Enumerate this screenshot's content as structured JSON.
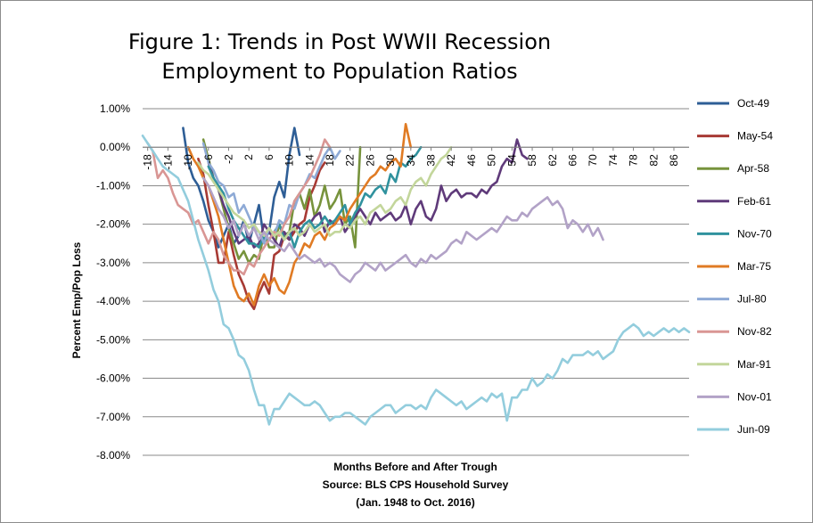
{
  "chart_data": {
    "type": "line",
    "title_lines": [
      "Figure 1: Trends in Post WWII Recession",
      "Employment to Population Ratios"
    ],
    "ylabel": "Percent Emp/Pop Loss",
    "xlabel_lines": [
      "Months Before and After Trough",
      "Source: BLS CPS Household Survey",
      "(Jan. 1948 to Oct. 2016)"
    ],
    "ylim": [
      -8,
      1
    ],
    "yticks": [
      1,
      0,
      -1,
      -2,
      -3,
      -4,
      -5,
      -6,
      -7,
      -8
    ],
    "ytick_labels": [
      "1.00%",
      "0.00%",
      "-1.00%",
      "-2.00%",
      "-3.00%",
      "-4.00%",
      "-5.00%",
      "-6.00%",
      "-7.00%",
      "-8.00%"
    ],
    "xlim": [
      -19,
      89
    ],
    "xticks": [
      -18,
      -14,
      -10,
      -6,
      -2,
      2,
      6,
      10,
      14,
      18,
      22,
      26,
      30,
      34,
      38,
      42,
      46,
      50,
      54,
      58,
      62,
      66,
      70,
      74,
      78,
      82,
      86
    ],
    "grid": "horizontal",
    "legend_position": "right",
    "series": [
      {
        "name": "Oct-49",
        "color": "#2e5e96",
        "x": [
          -11,
          -10,
          -9,
          -8,
          -7,
          -6,
          -5,
          -4,
          -3,
          -2,
          -1,
          0,
          1,
          2,
          3,
          4,
          5,
          6,
          7,
          8,
          9,
          10,
          11,
          12
        ],
        "y": [
          0.5,
          -0.4,
          -0.8,
          -1.0,
          -1.4,
          -1.9,
          -2.2,
          -2.6,
          -2.3,
          -2.0,
          -2.5,
          -2.3,
          -1.9,
          -2.5,
          -2.0,
          -1.5,
          -2.4,
          -2.2,
          -1.3,
          -0.9,
          -1.3,
          -0.2,
          0.5,
          -0.2
        ]
      },
      {
        "name": "May-54",
        "color": "#a73a34",
        "x": [
          -8,
          -7,
          -6,
          -5,
          -4,
          -3,
          -2,
          -1,
          0,
          1,
          2,
          3,
          4,
          5,
          6,
          7,
          8,
          9,
          10,
          11,
          12,
          13,
          14,
          15,
          16,
          17
        ],
        "y": [
          -0.3,
          -0.7,
          -1.5,
          -2.2,
          -3.0,
          -3.0,
          -2.2,
          -2.8,
          -3.3,
          -3.6,
          -4.0,
          -4.2,
          -3.8,
          -3.5,
          -3.8,
          -2.8,
          -2.7,
          -2.3,
          -2.4,
          -2.2,
          -2.0,
          -1.9,
          -1.3,
          -1.0,
          -0.6,
          -0.4
        ]
      },
      {
        "name": "Apr-58",
        "color": "#77933c",
        "x": [
          -7,
          -6,
          -5,
          -4,
          -3,
          -2,
          -1,
          0,
          1,
          2,
          3,
          4,
          5,
          6,
          7,
          8,
          9,
          10,
          11,
          12,
          13,
          14,
          15,
          16,
          17,
          18,
          19,
          20,
          21,
          22,
          23,
          24
        ],
        "y": [
          0.2,
          -0.3,
          -0.8,
          -1.1,
          -1.6,
          -2.1,
          -2.5,
          -2.9,
          -2.7,
          -3.0,
          -2.8,
          -2.9,
          -2.2,
          -2.6,
          -2.6,
          -2.0,
          -2.3,
          -2.2,
          -1.4,
          -1.2,
          -1.6,
          -1.1,
          -1.8,
          -1.5,
          -1.0,
          -1.6,
          -1.4,
          -1.1,
          -2.0,
          -1.8,
          -2.6,
          0.0
        ]
      },
      {
        "name": "Feb-61",
        "color": "#5f3a7a",
        "x": [
          -6,
          -5,
          -4,
          -3,
          -2,
          -1,
          0,
          1,
          2,
          3,
          4,
          5,
          6,
          7,
          8,
          9,
          10,
          11,
          12,
          13,
          14,
          15,
          16,
          17,
          18,
          19,
          20,
          21,
          22,
          23,
          24,
          25,
          26,
          27,
          28,
          29,
          30,
          31,
          32,
          33,
          34,
          35,
          36,
          37,
          38,
          39,
          40,
          41,
          42,
          43,
          44,
          45,
          46,
          47,
          48,
          49,
          50,
          51,
          52,
          53,
          54,
          55,
          56,
          57
        ],
        "y": [
          -0.4,
          -0.8,
          -1.1,
          -1.5,
          -1.8,
          -2.2,
          -2.5,
          -2.4,
          -2.3,
          -2.6,
          -2.5,
          -2.0,
          -2.2,
          -2.4,
          -2.6,
          -2.2,
          -2.4,
          -2.0,
          -2.1,
          -2.3,
          -2.0,
          -1.8,
          -1.7,
          -2.2,
          -1.9,
          -2.0,
          -1.8,
          -2.2,
          -2.0,
          -1.8,
          -1.6,
          -1.8,
          -2.0,
          -1.7,
          -1.9,
          -1.8,
          -1.7,
          -1.9,
          -1.8,
          -1.5,
          -2.0,
          -1.6,
          -1.4,
          -1.8,
          -1.9,
          -1.6,
          -1.0,
          -1.4,
          -1.2,
          -1.1,
          -1.3,
          -1.2,
          -1.2,
          -1.3,
          -1.1,
          -1.2,
          -1.0,
          -0.9,
          -0.5,
          -0.3,
          -0.4,
          0.2,
          -0.2,
          -0.3
        ]
      },
      {
        "name": "Nov-70",
        "color": "#30929e",
        "x": [
          -6,
          -5,
          -4,
          -3,
          -2,
          -1,
          0,
          1,
          2,
          3,
          4,
          5,
          6,
          7,
          8,
          9,
          10,
          11,
          12,
          13,
          14,
          15,
          16,
          17,
          18,
          19,
          20,
          21,
          22,
          23,
          24,
          25,
          26,
          27,
          28,
          29,
          30,
          31,
          32,
          33,
          34,
          35,
          36
        ],
        "y": [
          -0.5,
          -0.8,
          -1.0,
          -1.2,
          -1.6,
          -1.9,
          -2.1,
          -2.3,
          -2.5,
          -2.5,
          -2.6,
          -2.3,
          -2.4,
          -2.2,
          -2.0,
          -2.4,
          -2.2,
          -2.6,
          -2.2,
          -2.0,
          -1.9,
          -2.1,
          -2.0,
          -1.8,
          -2.0,
          -1.9,
          -1.7,
          -1.5,
          -2.0,
          -1.7,
          -1.5,
          -1.2,
          -1.3,
          -1.1,
          -1.0,
          -1.2,
          -0.7,
          -0.9,
          -0.4,
          -0.5,
          -0.3,
          -0.2,
          0.0
        ]
      },
      {
        "name": "Mar-75",
        "color": "#e07b24",
        "x": [
          -10,
          -9,
          -8,
          -7,
          -6,
          -5,
          -4,
          -3,
          -2,
          -1,
          0,
          1,
          2,
          3,
          4,
          5,
          6,
          7,
          8,
          9,
          10,
          11,
          12,
          13,
          14,
          15,
          16,
          17,
          18,
          19,
          20,
          21,
          22,
          23,
          24,
          25,
          26,
          27,
          28,
          29,
          30,
          31,
          32,
          33,
          34
        ],
        "y": [
          0.0,
          -0.3,
          -0.5,
          -0.8,
          -1.0,
          -1.4,
          -1.8,
          -2.4,
          -3.0,
          -3.6,
          -3.9,
          -4.0,
          -3.8,
          -4.1,
          -3.6,
          -3.3,
          -3.6,
          -3.4,
          -3.7,
          -3.8,
          -3.5,
          -3.0,
          -2.8,
          -2.5,
          -2.6,
          -2.3,
          -2.2,
          -2.4,
          -2.1,
          -2.0,
          -1.8,
          -1.9,
          -1.6,
          -1.4,
          -1.2,
          -1.0,
          -0.8,
          -0.7,
          -0.5,
          -0.6,
          -0.4,
          -0.3,
          -0.5,
          0.6,
          0.0
        ]
      },
      {
        "name": "Jul-80",
        "color": "#8eaad6",
        "x": [
          -7,
          -6,
          -5,
          -4,
          -3,
          -2,
          -1,
          0,
          1,
          2,
          3,
          4,
          5,
          6,
          7,
          8,
          9,
          10,
          11,
          12,
          13,
          14,
          15,
          16,
          17,
          18,
          19,
          20
        ],
        "y": [
          0.1,
          -0.4,
          -0.6,
          -0.9,
          -1.0,
          -1.3,
          -1.2,
          -1.7,
          -1.5,
          -1.8,
          -2.1,
          -2.2,
          -2.5,
          -2.1,
          -2.3,
          -1.9,
          -2.0,
          -1.5,
          -1.6,
          -1.2,
          -1.0,
          -0.7,
          -0.8,
          -0.5,
          -0.2,
          0.0,
          -0.3,
          -0.1
        ]
      },
      {
        "name": "Nov-82",
        "color": "#d99694",
        "x": [
          -18,
          -17,
          -16,
          -15,
          -14,
          -13,
          -12,
          -11,
          -10,
          -9,
          -8,
          -7,
          -6,
          -5,
          -4,
          -3,
          -2,
          -1,
          0,
          1,
          2,
          3,
          4,
          5,
          6,
          7,
          8,
          9,
          10,
          11,
          12,
          13,
          14,
          15,
          16,
          17,
          18
        ],
        "y": [
          0.1,
          -0.1,
          -0.8,
          -0.6,
          -0.8,
          -1.2,
          -1.5,
          -1.6,
          -1.7,
          -2.0,
          -1.9,
          -2.2,
          -2.5,
          -2.2,
          -2.4,
          -2.8,
          -3.0,
          -3.2,
          -3.2,
          -3.3,
          -3.0,
          -3.1,
          -2.8,
          -2.6,
          -2.4,
          -2.2,
          -2.3,
          -2.0,
          -1.8,
          -1.4,
          -1.2,
          -1.0,
          -0.8,
          -0.5,
          -0.2,
          0.2,
          0.0
        ]
      },
      {
        "name": "Mar-91",
        "color": "#c3d69b",
        "x": [
          -8,
          -7,
          -6,
          -5,
          -4,
          -3,
          -2,
          -1,
          0,
          1,
          2,
          3,
          4,
          5,
          6,
          7,
          8,
          9,
          10,
          11,
          12,
          13,
          14,
          15,
          16,
          17,
          18,
          19,
          20,
          21,
          22,
          23,
          24,
          25,
          26,
          27,
          28,
          29,
          30,
          31,
          32,
          33,
          34,
          35,
          36,
          37,
          38,
          39,
          40,
          41,
          42
        ],
        "y": [
          -0.4,
          -0.6,
          -0.7,
          -0.9,
          -1.1,
          -1.3,
          -1.5,
          -1.7,
          -1.8,
          -1.9,
          -2.1,
          -2.0,
          -2.2,
          -2.3,
          -2.1,
          -2.3,
          -2.2,
          -2.4,
          -2.2,
          -2.1,
          -2.3,
          -2.2,
          -2.0,
          -2.2,
          -2.1,
          -2.0,
          -2.3,
          -2.2,
          -2.2,
          -2.0,
          -2.1,
          -1.9,
          -1.8,
          -2.0,
          -1.7,
          -1.6,
          -1.5,
          -1.7,
          -1.6,
          -1.4,
          -1.3,
          -1.5,
          -1.1,
          -0.9,
          -0.8,
          -1.0,
          -0.7,
          -0.5,
          -0.3,
          -0.2,
          0.0
        ]
      },
      {
        "name": "Nov-01",
        "color": "#b2a2c7",
        "x": [
          -7,
          -6,
          -5,
          -4,
          -3,
          -2,
          -1,
          0,
          1,
          2,
          3,
          4,
          5,
          6,
          7,
          8,
          9,
          10,
          11,
          12,
          13,
          14,
          15,
          16,
          17,
          18,
          19,
          20,
          21,
          22,
          23,
          24,
          25,
          26,
          27,
          28,
          29,
          30,
          31,
          32,
          33,
          34,
          35,
          36,
          37,
          38,
          39,
          40,
          41,
          42,
          43,
          44,
          45,
          46,
          47,
          48,
          49,
          50,
          51,
          52,
          53,
          54,
          55,
          56,
          57,
          58,
          59,
          60,
          61,
          62,
          63,
          64,
          65,
          66,
          67,
          68,
          69,
          70,
          71,
          72
        ],
        "y": [
          -0.8,
          -1.0,
          -1.3,
          -1.6,
          -1.8,
          -2.1,
          -1.9,
          -2.3,
          -2.0,
          -2.3,
          -2.1,
          -2.4,
          -2.2,
          -2.4,
          -2.5,
          -2.6,
          -2.7,
          -2.5,
          -2.7,
          -2.9,
          -2.8,
          -2.9,
          -3.0,
          -2.9,
          -3.1,
          -3.0,
          -3.1,
          -3.3,
          -3.4,
          -3.5,
          -3.3,
          -3.2,
          -3.0,
          -3.1,
          -3.2,
          -3.0,
          -3.2,
          -3.1,
          -3.0,
          -2.9,
          -2.8,
          -3.0,
          -3.1,
          -2.9,
          -3.0,
          -2.8,
          -2.9,
          -2.8,
          -2.7,
          -2.5,
          -2.4,
          -2.5,
          -2.2,
          -2.3,
          -2.4,
          -2.3,
          -2.2,
          -2.1,
          -2.2,
          -2.0,
          -1.8,
          -1.9,
          -1.9,
          -1.7,
          -1.8,
          -1.6,
          -1.5,
          -1.4,
          -1.3,
          -1.5,
          -1.4,
          -1.6,
          -2.1,
          -1.9,
          -2.0,
          -2.2,
          -2.0,
          -2.3,
          -2.1,
          -2.4
        ]
      },
      {
        "name": "Jun-09",
        "color": "#93cddd",
        "x": [
          -19,
          -18,
          -17,
          -16,
          -15,
          -14,
          -13,
          -12,
          -11,
          -10,
          -9,
          -8,
          -7,
          -6,
          -5,
          -4,
          -3,
          -2,
          -1,
          0,
          1,
          2,
          3,
          4,
          5,
          6,
          7,
          8,
          9,
          10,
          11,
          12,
          13,
          14,
          15,
          16,
          17,
          18,
          19,
          20,
          21,
          22,
          23,
          24,
          25,
          26,
          27,
          28,
          29,
          30,
          31,
          32,
          33,
          34,
          35,
          36,
          37,
          38,
          39,
          40,
          41,
          42,
          43,
          44,
          45,
          46,
          47,
          48,
          49,
          50,
          51,
          52,
          53,
          54,
          55,
          56,
          57,
          58,
          59,
          60,
          61,
          62,
          63,
          64,
          65,
          66,
          67,
          68,
          69,
          70,
          71,
          72,
          73,
          74,
          75,
          76,
          77,
          78,
          79,
          80,
          81,
          82,
          83,
          84,
          85,
          86,
          87,
          88,
          89
        ],
        "y": [
          0.3,
          0.1,
          -0.1,
          -0.3,
          -0.5,
          -0.6,
          -0.7,
          -0.8,
          -1.1,
          -1.4,
          -1.9,
          -2.4,
          -2.8,
          -3.2,
          -3.7,
          -4.0,
          -4.6,
          -4.7,
          -5.0,
          -5.4,
          -5.5,
          -5.8,
          -6.3,
          -6.7,
          -6.7,
          -7.2,
          -6.8,
          -6.8,
          -6.6,
          -6.4,
          -6.5,
          -6.6,
          -6.7,
          -6.7,
          -6.6,
          -6.7,
          -6.9,
          -7.1,
          -7.0,
          -7.0,
          -6.9,
          -6.9,
          -7.0,
          -7.1,
          -7.2,
          -7.0,
          -6.9,
          -6.8,
          -6.7,
          -6.7,
          -6.9,
          -6.8,
          -6.7,
          -6.7,
          -6.8,
          -6.7,
          -6.8,
          -6.5,
          -6.3,
          -6.4,
          -6.5,
          -6.6,
          -6.7,
          -6.6,
          -6.8,
          -6.7,
          -6.6,
          -6.5,
          -6.6,
          -6.4,
          -6.5,
          -6.4,
          -7.1,
          -6.5,
          -6.5,
          -6.3,
          -6.3,
          -6.0,
          -6.2,
          -6.1,
          -5.9,
          -6.0,
          -5.8,
          -5.5,
          -5.6,
          -5.4,
          -5.4,
          -5.4,
          -5.3,
          -5.4,
          -5.3,
          -5.5,
          -5.4,
          -5.3,
          -5.0,
          -4.8,
          -4.7,
          -4.6,
          -4.7,
          -4.9,
          -4.8,
          -4.9,
          -4.8,
          -4.7,
          -4.8,
          -4.7,
          -4.8,
          -4.7,
          -4.8
        ]
      }
    ]
  }
}
